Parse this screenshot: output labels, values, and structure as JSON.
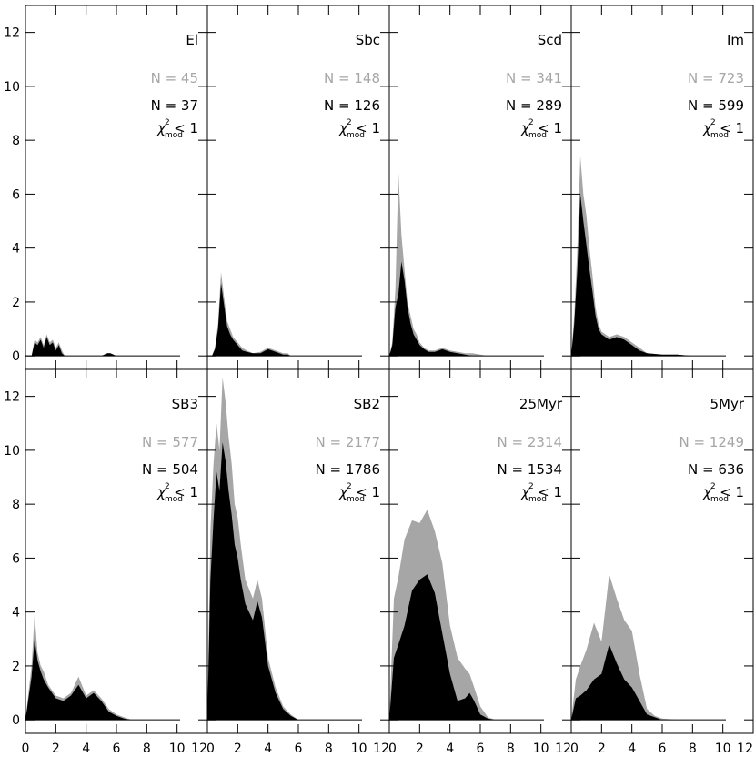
{
  "figure": {
    "colors": {
      "all": "#a6a6a6",
      "fit": "#000000",
      "axis": "#000000",
      "background": "#ffffff"
    },
    "yticks": [
      0,
      2,
      4,
      6,
      8,
      10,
      12
    ],
    "xticks": [
      0,
      2,
      4,
      6,
      8,
      10,
      12
    ],
    "ytick_labels": [
      "0",
      "2",
      "4",
      "6",
      "8",
      "10",
      "12"
    ],
    "xtick_labels": [
      "0",
      "2",
      "4",
      "6",
      "8",
      "10",
      "12"
    ]
  },
  "chart_data": [
    {
      "type": "area",
      "panel": "El",
      "title": "El",
      "n_all_label": "N = 45",
      "n_fit_label": "N = 37",
      "chi_label": "< 1",
      "xlim": [
        0,
        12
      ],
      "ylim": [
        -0.5,
        13
      ],
      "series": [
        {
          "name": "N = 45",
          "x": [
            0.4,
            0.6,
            0.8,
            1,
            1.2,
            1.4,
            1.6,
            1.8,
            2,
            2.2,
            2.4,
            2.6,
            2.8,
            3,
            4,
            5,
            5.4,
            5.6,
            5.8,
            6
          ],
          "y": [
            0,
            0.6,
            0.5,
            0.7,
            0.4,
            0.8,
            0.5,
            0.6,
            0.3,
            0.5,
            0.2,
            0,
            0,
            0,
            0,
            0,
            0.1,
            0.1,
            0.05,
            0
          ]
        },
        {
          "name": "N = 37",
          "x": [
            0.4,
            0.6,
            0.8,
            1,
            1.2,
            1.4,
            1.6,
            1.8,
            2,
            2.2,
            2.4,
            2.6,
            2.8,
            3,
            4,
            5,
            5.4,
            5.6,
            5.8,
            6
          ],
          "y": [
            0,
            0.5,
            0.4,
            0.6,
            0.3,
            0.7,
            0.4,
            0.5,
            0.2,
            0.4,
            0.1,
            0,
            0,
            0,
            0,
            0,
            0.1,
            0.1,
            0.05,
            0
          ]
        }
      ]
    },
    {
      "type": "area",
      "panel": "Sbc",
      "title": "Sbc",
      "n_all_label": "N = 148",
      "n_fit_label": "N = 126",
      "chi_label": "< 1",
      "xlim": [
        0,
        12
      ],
      "ylim": [
        -0.5,
        13
      ],
      "series": [
        {
          "name": "N = 148",
          "x": [
            0.3,
            0.5,
            0.7,
            0.9,
            1.1,
            1.3,
            1.5,
            1.7,
            2,
            2.3,
            2.6,
            3,
            3.5,
            4,
            4.5,
            5,
            5.3,
            5.5
          ],
          "y": [
            0,
            0.3,
            1.2,
            3.1,
            2.2,
            1.3,
            1,
            0.7,
            0.5,
            0.3,
            0.2,
            0.1,
            0.15,
            0.3,
            0.2,
            0.1,
            0.1,
            0
          ]
        },
        {
          "name": "N = 126",
          "x": [
            0.3,
            0.5,
            0.7,
            0.9,
            1.1,
            1.3,
            1.5,
            1.7,
            2,
            2.3,
            2.6,
            3,
            3.5,
            4,
            4.5,
            5,
            5.3,
            5.5
          ],
          "y": [
            0,
            0.25,
            1,
            2.7,
            1.9,
            1.1,
            0.8,
            0.6,
            0.4,
            0.2,
            0.15,
            0.1,
            0.1,
            0.25,
            0.15,
            0.05,
            0.05,
            0
          ]
        }
      ]
    },
    {
      "type": "area",
      "panel": "Scd",
      "title": "Scd",
      "n_all_label": "N = 341",
      "n_fit_label": "N = 289",
      "chi_label": "< 1",
      "xlim": [
        0,
        12
      ],
      "ylim": [
        -0.5,
        13
      ],
      "series": [
        {
          "name": "N = 341",
          "x": [
            0,
            0.2,
            0.4,
            0.6,
            0.8,
            1,
            1.2,
            1.4,
            1.6,
            1.8,
            2,
            2.3,
            2.6,
            3,
            3.5,
            4,
            4.5,
            5,
            5.5,
            6,
            6.5
          ],
          "y": [
            0,
            0.5,
            2.5,
            6.8,
            4.5,
            3.2,
            2,
            1.5,
            1,
            0.8,
            0.5,
            0.3,
            0.2,
            0.2,
            0.3,
            0.2,
            0.15,
            0.1,
            0.1,
            0.05,
            0
          ]
        },
        {
          "name": "N = 289",
          "x": [
            0,
            0.2,
            0.4,
            0.6,
            0.8,
            1,
            1.2,
            1.4,
            1.6,
            1.8,
            2,
            2.3,
            2.6,
            3,
            3.5,
            4,
            4.5,
            5,
            5.5,
            6,
            6.5
          ],
          "y": [
            0,
            0.4,
            1.8,
            2.3,
            3.5,
            2.8,
            1.8,
            1.2,
            0.8,
            0.6,
            0.4,
            0.25,
            0.15,
            0.15,
            0.25,
            0.15,
            0.1,
            0.05,
            0,
            0,
            0
          ]
        }
      ]
    },
    {
      "type": "area",
      "panel": "Im",
      "title": "Im",
      "n_all_label": "N = 723",
      "n_fit_label": "N = 599",
      "chi_label": "< 1",
      "xlim": [
        0,
        12
      ],
      "ylim": [
        -0.5,
        13
      ],
      "series": [
        {
          "name": "N = 723",
          "x": [
            0,
            0.2,
            0.4,
            0.6,
            0.8,
            1,
            1.2,
            1.4,
            1.6,
            1.8,
            2,
            2.5,
            3,
            3.5,
            4,
            4.5,
            5,
            6,
            7,
            8
          ],
          "y": [
            0,
            1.5,
            4,
            7.4,
            6,
            5.2,
            4,
            3,
            1.8,
            1.2,
            0.9,
            0.7,
            0.8,
            0.7,
            0.5,
            0.3,
            0.1,
            0.05,
            0.05,
            0
          ]
        },
        {
          "name": "N = 599",
          "x": [
            0,
            0.2,
            0.4,
            0.6,
            0.8,
            1,
            1.2,
            1.4,
            1.6,
            1.8,
            2,
            2.5,
            3,
            3.5,
            4,
            4.5,
            5,
            6,
            7,
            8
          ],
          "y": [
            0,
            1.2,
            3.2,
            6,
            5,
            4.1,
            3.2,
            2.4,
            1.5,
            1,
            0.8,
            0.6,
            0.7,
            0.6,
            0.4,
            0.2,
            0.1,
            0.05,
            0.05,
            0
          ]
        }
      ]
    },
    {
      "type": "area",
      "panel": "SB3",
      "title": "SB3",
      "n_all_label": "N = 577",
      "n_fit_label": "N = 504",
      "chi_label": "< 1",
      "xlim": [
        0,
        12
      ],
      "ylim": [
        -0.5,
        13
      ],
      "series": [
        {
          "name": "N = 577",
          "x": [
            0,
            0.2,
            0.4,
            0.6,
            0.8,
            1,
            1.2,
            1.5,
            2,
            2.5,
            3,
            3.5,
            4,
            4.5,
            5,
            5.5,
            6,
            6.5,
            7
          ],
          "y": [
            0,
            1,
            2,
            3.9,
            2.5,
            2,
            1.8,
            1.3,
            0.9,
            0.8,
            1,
            1.6,
            0.9,
            1.1,
            0.8,
            0.4,
            0.2,
            0.1,
            0
          ]
        },
        {
          "name": "N = 504",
          "x": [
            0,
            0.2,
            0.4,
            0.6,
            0.8,
            1,
            1.2,
            1.5,
            2,
            2.5,
            3,
            3.5,
            4,
            4.5,
            5,
            5.5,
            6,
            6.5,
            7
          ],
          "y": [
            0,
            0.8,
            1.6,
            3,
            2.2,
            1.8,
            1.5,
            1.2,
            0.8,
            0.7,
            0.9,
            1.3,
            0.8,
            1,
            0.7,
            0.3,
            0.15,
            0.05,
            0
          ]
        }
      ]
    },
    {
      "type": "area",
      "panel": "SB2",
      "title": "SB2",
      "n_all_label": "N = 2177",
      "n_fit_label": "N = 1786",
      "chi_label": "< 1",
      "xlim": [
        0,
        12
      ],
      "ylim": [
        -0.5,
        13
      ],
      "series": [
        {
          "name": "N = 2177",
          "x": [
            0,
            0.2,
            0.4,
            0.6,
            0.8,
            1,
            1.2,
            1.4,
            1.6,
            1.8,
            2,
            2.2,
            2.5,
            3,
            3.3,
            3.6,
            4,
            4.5,
            5,
            5.5,
            6
          ],
          "y": [
            0,
            7,
            9.5,
            11,
            10,
            12.7,
            11.8,
            10.5,
            9.5,
            8,
            7.5,
            6.5,
            5.2,
            4.5,
            5.2,
            4.5,
            2.3,
            1.2,
            0.5,
            0.2,
            0
          ]
        },
        {
          "name": "N = 1786",
          "x": [
            0,
            0.2,
            0.4,
            0.6,
            0.8,
            1,
            1.2,
            1.4,
            1.6,
            1.8,
            2,
            2.2,
            2.5,
            3,
            3.3,
            3.6,
            4,
            4.5,
            5,
            5.5,
            6
          ],
          "y": [
            0,
            5.2,
            7.4,
            9.2,
            8.5,
            10.3,
            9.6,
            8.5,
            7.6,
            6.5,
            6,
            5.2,
            4.3,
            3.7,
            4.4,
            3.8,
            2,
            1,
            0.4,
            0.15,
            0
          ]
        }
      ]
    },
    {
      "type": "area",
      "panel": "25Myr",
      "title": "25Myr",
      "n_all_label": "N = 2314",
      "n_fit_label": "N = 1534",
      "chi_label": "< 1",
      "xlim": [
        0,
        12
      ],
      "ylim": [
        -0.5,
        13
      ],
      "series": [
        {
          "name": "N = 2314",
          "x": [
            0,
            0.3,
            0.6,
            1,
            1.5,
            2,
            2.5,
            3,
            3.5,
            4,
            4.5,
            5,
            5.3,
            5.6,
            6,
            6.5,
            7
          ],
          "y": [
            0,
            4.5,
            5.3,
            6.7,
            7.4,
            7.3,
            7.8,
            7,
            5.8,
            3.5,
            2.3,
            1.9,
            1.7,
            1.2,
            0.5,
            0.1,
            0
          ]
        },
        {
          "name": "N = 1534",
          "x": [
            0,
            0.3,
            0.6,
            1,
            1.5,
            2,
            2.5,
            3,
            3.5,
            4,
            4.5,
            5,
            5.3,
            5.6,
            6,
            6.5,
            7
          ],
          "y": [
            0,
            2.3,
            2.8,
            3.5,
            4.8,
            5.2,
            5.4,
            4.7,
            3.2,
            1.7,
            0.7,
            0.8,
            1,
            0.7,
            0.2,
            0.05,
            0
          ]
        }
      ]
    },
    {
      "type": "area",
      "panel": "5Myr",
      "title": "5Myr",
      "n_all_label": "N = 1249",
      "n_fit_label": "N = 636",
      "chi_label": "< 1",
      "xlim": [
        0,
        12
      ],
      "ylim": [
        -0.5,
        13
      ],
      "series": [
        {
          "name": "N = 1249",
          "x": [
            0,
            0.3,
            0.6,
            1,
            1.5,
            2,
            2.5,
            3,
            3.5,
            4,
            4.5,
            5,
            5.5,
            6,
            7,
            9
          ],
          "y": [
            0,
            1.5,
            2,
            2.6,
            3.6,
            2.9,
            5.4,
            4.5,
            3.7,
            3.3,
            1.7,
            0.4,
            0.15,
            0.05,
            0,
            0
          ]
        },
        {
          "name": "N = 636",
          "x": [
            0,
            0.3,
            0.6,
            1,
            1.5,
            2,
            2.5,
            3,
            3.5,
            4,
            4.5,
            5,
            5.5,
            6,
            7,
            9
          ],
          "y": [
            0,
            0.8,
            0.9,
            1.1,
            1.5,
            1.7,
            2.8,
            2.1,
            1.5,
            1.2,
            0.7,
            0.2,
            0.1,
            0,
            0,
            0
          ]
        }
      ]
    }
  ]
}
